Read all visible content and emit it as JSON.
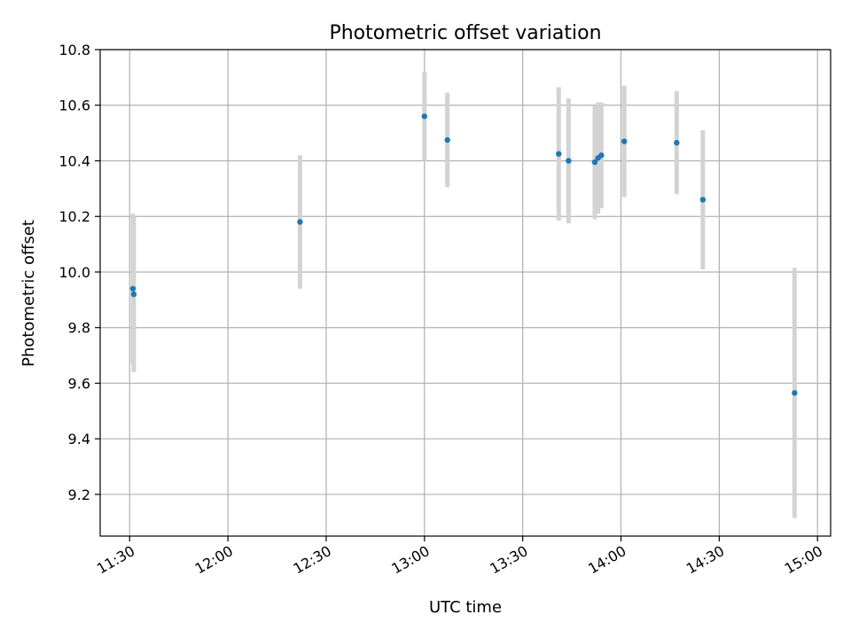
{
  "chart_data": {
    "type": "scatter",
    "title": "Photometric offset variation",
    "xlabel": "UTC time",
    "ylabel": "Photometric offset",
    "x_ticks": [
      "11:30",
      "12:00",
      "12:30",
      "13:00",
      "13:30",
      "14:00",
      "14:30",
      "15:00"
    ],
    "y_ticks": [
      "9.2",
      "9.4",
      "9.6",
      "9.8",
      "10.0",
      "10.2",
      "10.4",
      "10.6",
      "10.8"
    ],
    "xlim": [
      "11:21",
      "15:04"
    ],
    "ylim": [
      9.05,
      10.8
    ],
    "grid": true,
    "point_color": "#1f77b4",
    "errorbar_color": "#d3d3d3",
    "points": [
      {
        "x": "11:31",
        "y": 9.94,
        "err": 0.27
      },
      {
        "x": "11:31",
        "y": 9.92,
        "err": 0.28
      },
      {
        "x": "12:22",
        "y": 10.18,
        "err": 0.24
      },
      {
        "x": "13:00",
        "y": 10.56,
        "err": 0.16
      },
      {
        "x": "13:07",
        "y": 10.475,
        "err": 0.17
      },
      {
        "x": "13:41",
        "y": 10.425,
        "err": 0.24
      },
      {
        "x": "13:44",
        "y": 10.4,
        "err": 0.225
      },
      {
        "x": "13:52",
        "y": 10.395,
        "err": 0.205
      },
      {
        "x": "13:53",
        "y": 10.41,
        "err": 0.2
      },
      {
        "x": "13:54",
        "y": 10.42,
        "err": 0.19
      },
      {
        "x": "14:01",
        "y": 10.47,
        "err": 0.2
      },
      {
        "x": "14:17",
        "y": 10.465,
        "err": 0.185
      },
      {
        "x": "14:25",
        "y": 10.26,
        "err": 0.25
      },
      {
        "x": "14:53",
        "y": 9.565,
        "err": 0.45
      }
    ]
  }
}
